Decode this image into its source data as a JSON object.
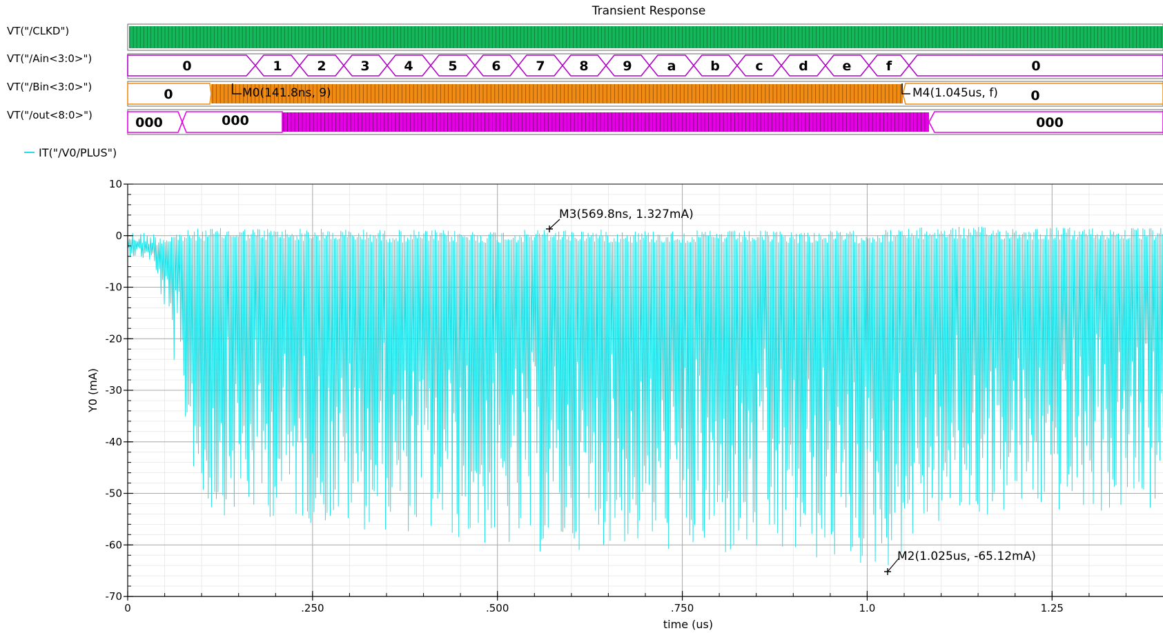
{
  "title": "Transient Response",
  "digital": {
    "clk": {
      "label": "VT(\"/CLKD\")",
      "color": "#14b85a"
    },
    "ain": {
      "label": "VT(\"/Ain<3:0>\")",
      "color": "#b000c8",
      "values": [
        "0",
        "1",
        "2",
        "3",
        "4",
        "5",
        "6",
        "7",
        "8",
        "9",
        "a",
        "b",
        "c",
        "d",
        "e",
        "f",
        "0"
      ]
    },
    "bin": {
      "label": "VT(\"/Bin<3:0>\")",
      "color": "#f08c14",
      "values": [
        "0",
        "0"
      ]
    },
    "out": {
      "label": "VT(\"/out<8:0>\")",
      "color": "#e600e6",
      "values": [
        "000",
        "000",
        "000"
      ]
    }
  },
  "markers": {
    "m0": "M0(141.8ns, 9)",
    "m4": "M4(1.045us, f)",
    "m3": "M3(569.8ns, 1.327mA)",
    "m2": "M2(1.025us, -65.12mA)"
  },
  "chart_data": {
    "type": "line",
    "title": "Transient Response",
    "xlabel": "time (us)",
    "ylabel": "Y0 (mA)",
    "xlim": [
      0,
      1.4
    ],
    "ylim": [
      -70,
      10
    ],
    "x_ticks": [
      "0",
      ".250",
      ".500",
      ".750",
      "1.0",
      "1.25"
    ],
    "y_ticks": [
      "10",
      "0",
      "-10",
      "-20",
      "-30",
      "-40",
      "-50",
      "-60",
      "-70"
    ],
    "grid": true,
    "legend_position": "top-left",
    "series": [
      {
        "name": "IT(\"/V0/PLUS\")",
        "color": "#1ee0e6",
        "upper_envelope": {
          "x": [
            0,
            0.05,
            0.1,
            0.2,
            0.35,
            0.5,
            0.57,
            0.75,
            1.0,
            1.1,
            1.4
          ],
          "y": [
            1,
            0.5,
            1.5,
            1.5,
            1.2,
            1.0,
            1.3,
            1.0,
            1.0,
            1.8,
            1.5
          ]
        },
        "lower_envelope": {
          "x": [
            0,
            0.03,
            0.05,
            0.08,
            0.1,
            0.2,
            0.3,
            0.4,
            0.5,
            0.57,
            0.65,
            0.8,
            0.9,
            1.025,
            1.08,
            1.2,
            1.4
          ],
          "y": [
            -4,
            -5,
            -15,
            -40,
            -54,
            -55,
            -57,
            -58,
            -61,
            -62,
            -60,
            -63,
            -63,
            -65.1,
            -57,
            -54,
            -54
          ]
        }
      }
    ],
    "markers": [
      {
        "label": "M3",
        "x": 0.5698,
        "y": 1.327
      },
      {
        "label": "M2",
        "x": 1.025,
        "y": -65.12
      }
    ]
  }
}
